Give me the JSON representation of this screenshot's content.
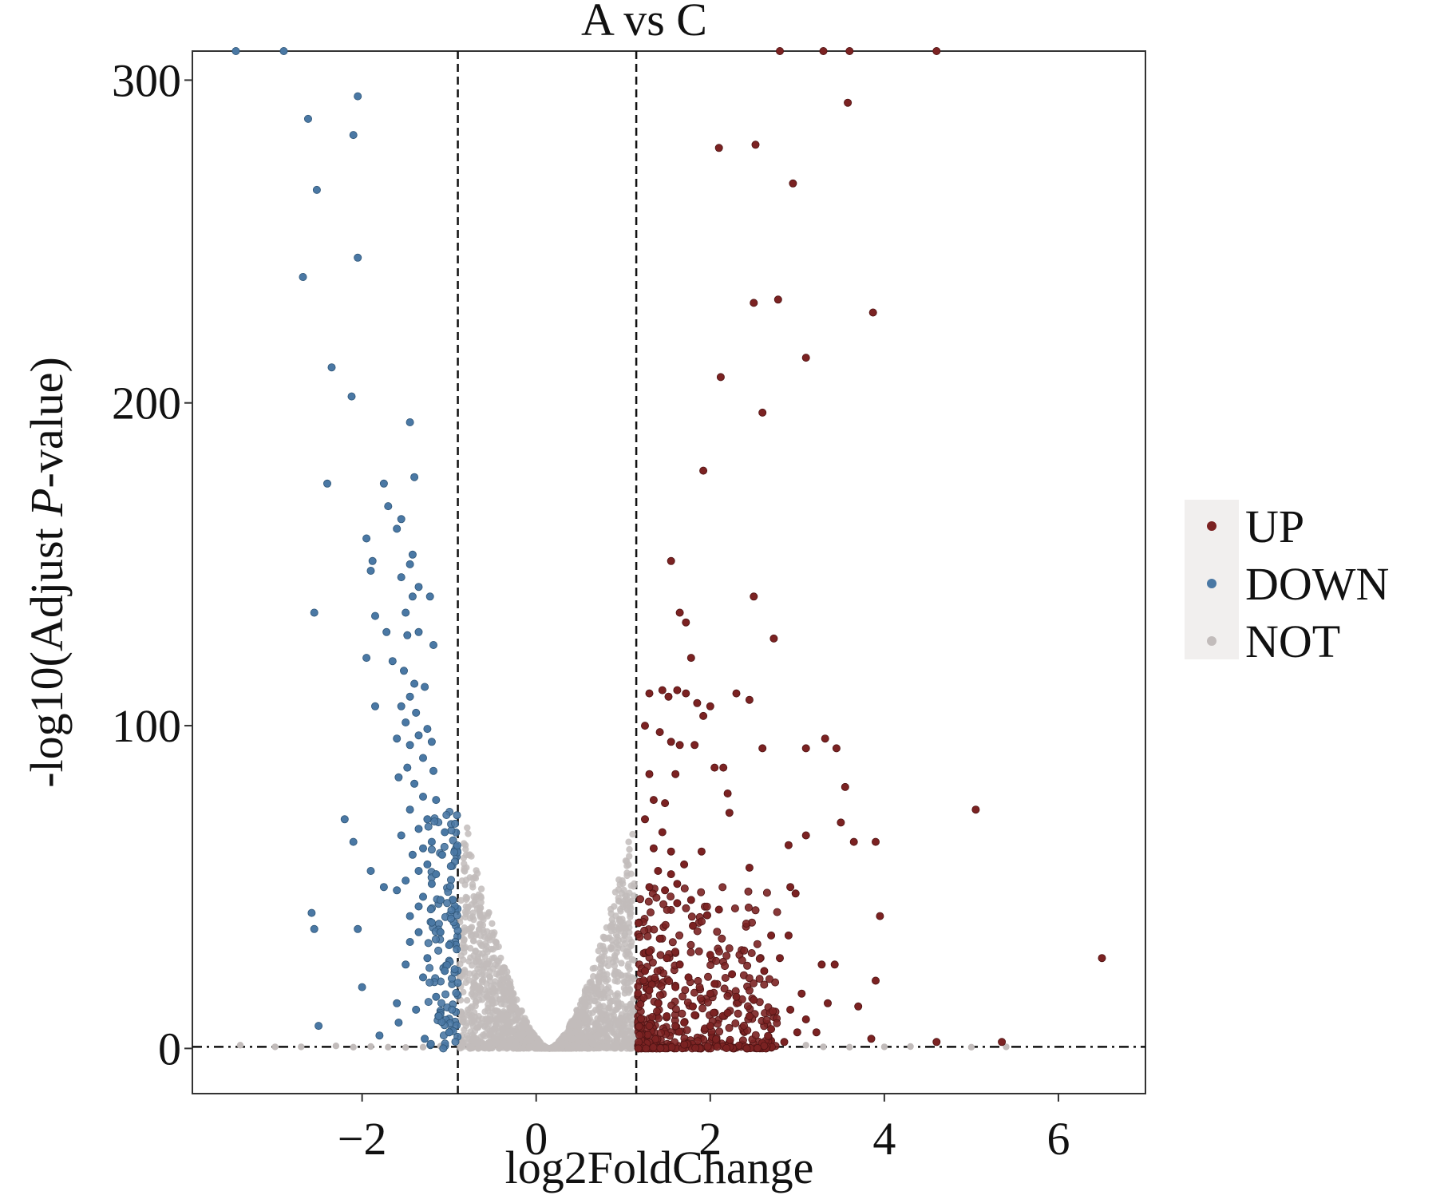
{
  "chart_data": {
    "type": "scatter",
    "title": "A  vs  C",
    "xlabel": "log2FoldChange",
    "ylabel_parts": [
      "-log10(Adjust ",
      "P",
      "-value)"
    ],
    "xlim": [
      -3.95,
      7.0
    ],
    "ylim": [
      -14,
      309
    ],
    "xticks": [
      -2,
      0,
      2,
      4,
      6
    ],
    "xtick_labels": [
      "−2",
      "0",
      "2",
      "4",
      "6"
    ],
    "yticks": [
      0,
      100,
      200,
      300
    ],
    "ytick_labels": [
      "0",
      "100",
      "200",
      "300"
    ],
    "thresholds": {
      "log2fc": [
        -0.9,
        1.15
      ],
      "neglog10p": 0.5
    },
    "grid": false,
    "legend_position": "right",
    "legend": [
      {
        "label": "UP",
        "color": "#7b2222"
      },
      {
        "label": "DOWN",
        "color": "#4a78a4"
      },
      {
        "label": "NOT",
        "color": "#c2bcbb"
      }
    ],
    "series": [
      {
        "name": "UP",
        "color": "#7b2222",
        "points": [
          [
            2.8,
            309
          ],
          [
            3.3,
            309
          ],
          [
            3.6,
            309
          ],
          [
            4.6,
            309
          ],
          [
            3.58,
            293
          ],
          [
            2.52,
            280
          ],
          [
            2.1,
            279
          ],
          [
            2.95,
            268
          ],
          [
            2.5,
            231
          ],
          [
            2.78,
            232
          ],
          [
            3.87,
            228
          ],
          [
            3.1,
            214
          ],
          [
            2.12,
            208
          ],
          [
            2.6,
            197
          ],
          [
            1.92,
            179
          ],
          [
            1.55,
            151
          ],
          [
            2.5,
            140
          ],
          [
            1.65,
            135
          ],
          [
            1.72,
            132
          ],
          [
            2.73,
            127
          ],
          [
            1.78,
            121
          ],
          [
            1.3,
            110
          ],
          [
            1.45,
            111
          ],
          [
            1.52,
            109
          ],
          [
            1.62,
            111
          ],
          [
            1.72,
            110
          ],
          [
            1.85,
            107
          ],
          [
            2.0,
            106
          ],
          [
            2.3,
            110
          ],
          [
            2.45,
            108
          ],
          [
            1.92,
            103
          ],
          [
            1.25,
            100
          ],
          [
            1.42,
            98
          ],
          [
            1.55,
            95
          ],
          [
            1.65,
            94
          ],
          [
            1.82,
            94
          ],
          [
            2.6,
            93
          ],
          [
            3.1,
            93
          ],
          [
            3.32,
            96
          ],
          [
            3.45,
            93
          ],
          [
            2.05,
            87
          ],
          [
            2.15,
            87
          ],
          [
            1.3,
            85
          ],
          [
            1.6,
            85
          ],
          [
            3.55,
            81
          ],
          [
            2.2,
            79
          ],
          [
            1.35,
            77
          ],
          [
            1.48,
            76
          ],
          [
            2.22,
            73
          ],
          [
            5.05,
            74
          ],
          [
            1.25,
            71
          ],
          [
            3.5,
            70
          ],
          [
            1.45,
            67
          ],
          [
            3.1,
            66
          ],
          [
            3.65,
            64
          ],
          [
            3.9,
            64
          ],
          [
            1.35,
            62
          ],
          [
            2.9,
            63
          ],
          [
            1.55,
            61
          ],
          [
            1.9,
            61
          ],
          [
            1.7,
            57
          ],
          [
            2.45,
            56
          ],
          [
            1.4,
            55
          ],
          [
            1.55,
            54
          ],
          [
            1.62,
            51
          ],
          [
            1.3,
            50
          ],
          [
            1.48,
            49
          ],
          [
            2.92,
            50
          ],
          [
            2.98,
            48
          ],
          [
            1.78,
            46
          ],
          [
            2.1,
            43
          ],
          [
            1.62,
            45
          ],
          [
            3.95,
            41
          ],
          [
            1.8,
            38
          ],
          [
            2.7,
            35
          ],
          [
            1.42,
            34
          ],
          [
            2.9,
            35
          ],
          [
            1.3,
            30
          ],
          [
            1.5,
            28
          ],
          [
            2.0,
            29
          ],
          [
            2.8,
            28
          ],
          [
            3.43,
            26
          ],
          [
            1.65,
            26
          ],
          [
            6.5,
            28
          ],
          [
            1.25,
            24
          ],
          [
            2.25,
            23
          ],
          [
            2.62,
            24
          ],
          [
            3.28,
            26
          ],
          [
            1.75,
            22
          ],
          [
            2.05,
            20
          ],
          [
            3.9,
            21
          ],
          [
            1.3,
            18
          ],
          [
            1.6,
            19
          ],
          [
            2.0,
            17
          ],
          [
            2.3,
            16
          ],
          [
            2.5,
            15
          ],
          [
            3.05,
            17
          ],
          [
            1.4,
            14
          ],
          [
            1.8,
            13
          ],
          [
            3.7,
            13
          ],
          [
            2.2,
            11
          ],
          [
            2.92,
            12
          ],
          [
            3.35,
            14
          ],
          [
            1.5,
            10
          ],
          [
            2.45,
            10
          ],
          [
            3.1,
            9
          ],
          [
            1.3,
            7
          ],
          [
            1.7,
            8
          ],
          [
            2.0,
            7
          ],
          [
            2.7,
            6
          ],
          [
            3.22,
            5
          ],
          [
            3.0,
            5
          ],
          [
            3.85,
            3
          ],
          [
            4.6,
            2
          ],
          [
            5.35,
            2
          ],
          [
            2.85,
            2
          ]
        ]
      },
      {
        "name": "DOWN",
        "color": "#4a78a4",
        "points": [
          [
            -3.45,
            309
          ],
          [
            -2.9,
            309
          ],
          [
            -2.05,
            295
          ],
          [
            -2.62,
            288
          ],
          [
            -2.1,
            283
          ],
          [
            -2.52,
            266
          ],
          [
            -2.05,
            245
          ],
          [
            -2.68,
            239
          ],
          [
            -2.35,
            211
          ],
          [
            -2.12,
            202
          ],
          [
            -1.45,
            194
          ],
          [
            -2.4,
            175
          ],
          [
            -1.75,
            175
          ],
          [
            -1.4,
            177
          ],
          [
            -1.7,
            168
          ],
          [
            -1.55,
            164
          ],
          [
            -1.6,
            161
          ],
          [
            -1.42,
            153
          ],
          [
            -1.95,
            158
          ],
          [
            -1.88,
            151
          ],
          [
            -1.9,
            148
          ],
          [
            -1.45,
            150
          ],
          [
            -1.55,
            146
          ],
          [
            -1.35,
            143
          ],
          [
            -1.42,
            140
          ],
          [
            -1.22,
            140
          ],
          [
            -1.5,
            135
          ],
          [
            -2.55,
            135
          ],
          [
            -1.85,
            134
          ],
          [
            -1.72,
            129
          ],
          [
            -1.48,
            128
          ],
          [
            -1.35,
            129
          ],
          [
            -1.18,
            125
          ],
          [
            -1.65,
            120
          ],
          [
            -1.95,
            121
          ],
          [
            -1.52,
            117
          ],
          [
            -1.4,
            113
          ],
          [
            -1.28,
            112
          ],
          [
            -1.45,
            109
          ],
          [
            -1.55,
            106
          ],
          [
            -1.38,
            104
          ],
          [
            -1.85,
            106
          ],
          [
            -1.25,
            99
          ],
          [
            -1.5,
            101
          ],
          [
            -1.35,
            97
          ],
          [
            -1.6,
            96
          ],
          [
            -1.2,
            95
          ],
          [
            -1.45,
            94
          ],
          [
            -1.3,
            90
          ],
          [
            -1.48,
            87
          ],
          [
            -1.58,
            84
          ],
          [
            -1.18,
            86
          ],
          [
            -1.4,
            82
          ],
          [
            -1.3,
            78
          ],
          [
            -1.15,
            77
          ],
          [
            -1.45,
            74
          ],
          [
            -1.25,
            71
          ],
          [
            -2.2,
            71
          ],
          [
            -1.35,
            68
          ],
          [
            -1.05,
            67
          ],
          [
            -1.55,
            66
          ],
          [
            -1.2,
            64
          ],
          [
            -2.1,
            64
          ],
          [
            -1.3,
            62
          ],
          [
            -1.42,
            60
          ],
          [
            -1.08,
            60
          ],
          [
            -1.25,
            57
          ],
          [
            -1.35,
            55
          ],
          [
            -1.15,
            54
          ],
          [
            -1.9,
            55
          ],
          [
            -1.5,
            52
          ],
          [
            -1.2,
            51
          ],
          [
            -1.6,
            49
          ],
          [
            -1.75,
            50
          ],
          [
            -1.3,
            47
          ],
          [
            -1.1,
            46
          ],
          [
            -1.35,
            44
          ],
          [
            -2.58,
            42
          ],
          [
            -1.45,
            41
          ],
          [
            -1.2,
            39
          ],
          [
            -2.05,
            37
          ],
          [
            -2.55,
            37
          ],
          [
            -1.35,
            36
          ],
          [
            -1.1,
            36
          ],
          [
            -1.45,
            33
          ],
          [
            -1.0,
            32
          ],
          [
            -1.25,
            28
          ],
          [
            -1.5,
            26
          ],
          [
            -1.05,
            24
          ],
          [
            -1.3,
            22
          ],
          [
            -2.0,
            19
          ],
          [
            -1.15,
            16
          ],
          [
            -1.6,
            14
          ],
          [
            -1.38,
            12
          ],
          [
            -1.12,
            10
          ],
          [
            -1.58,
            8
          ],
          [
            -1.8,
            4
          ],
          [
            -2.5,
            7
          ],
          [
            -1.0,
            5
          ],
          [
            -1.28,
            3
          ]
        ]
      },
      {
        "name": "NOT",
        "color": "#c2bcbb",
        "points": [
          [
            -3.4,
            1
          ],
          [
            -3.0,
            0.5
          ],
          [
            -2.7,
            0.5
          ],
          [
            -2.3,
            0.8
          ],
          [
            -2.1,
            0.4
          ],
          [
            -1.9,
            0.6
          ],
          [
            -1.7,
            0.4
          ],
          [
            -1.5,
            0.3
          ],
          [
            -1.3,
            0.4
          ],
          [
            -1.1,
            0.7
          ],
          [
            3.3,
            0.5
          ],
          [
            3.6,
            0.4
          ],
          [
            4.0,
            0.5
          ],
          [
            4.3,
            0.6
          ],
          [
            5.0,
            0.4
          ],
          [
            5.4,
            0.5
          ],
          [
            3.1,
            1
          ]
        ]
      }
    ],
    "not_band": {
      "x_from": -0.88,
      "x_to": 1.13,
      "center": 0.15,
      "y_max_left": 80,
      "y_max_right": 73
    }
  }
}
